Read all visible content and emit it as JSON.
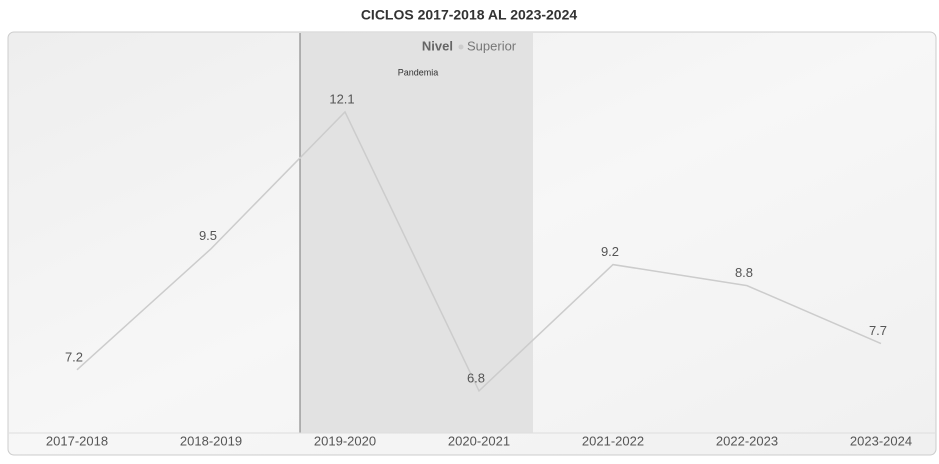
{
  "chart_data": {
    "type": "line",
    "title": "CICLOS 2017-2018 AL 2023-2024",
    "legend_title": "Nivel",
    "categories": [
      "2017-2018",
      "2018-2019",
      "2019-2020",
      "2020-2021",
      "2021-2022",
      "2022-2023",
      "2023-2024"
    ],
    "series": [
      {
        "name": "Superior",
        "color": "#cccccc",
        "values": [
          7.2,
          9.5,
          12.1,
          6.8,
          9.2,
          8.8,
          7.7
        ]
      }
    ],
    "annotation": "Pandemia",
    "ylim": [
      6,
      13.6
    ]
  }
}
